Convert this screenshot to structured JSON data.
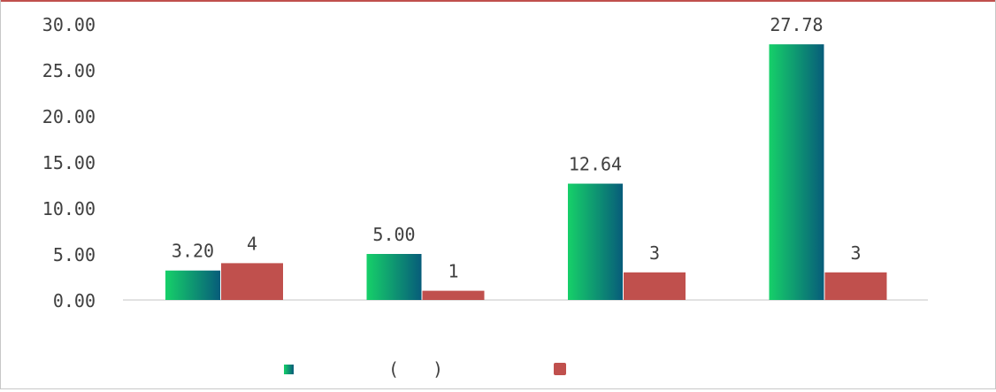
{
  "colors": {
    "series1_from": "#16d069",
    "series1_to": "#075c7a",
    "series2": "#c0504d",
    "border_top": "#c0504d",
    "axis": "#d9d9d9"
  },
  "legend": {
    "paren_open": "(",
    "paren_close": ")"
  },
  "chart_data": {
    "type": "bar",
    "categories": [
      "",
      "",
      "",
      ""
    ],
    "series": [
      {
        "values": [
          3.2,
          5.0,
          12.64,
          27.78
        ],
        "labels": [
          "3.20",
          "5.00",
          "12.64",
          "27.78"
        ]
      },
      {
        "values": [
          4,
          1,
          3,
          3
        ],
        "labels": [
          "4",
          "1",
          "3",
          "3"
        ]
      }
    ],
    "ylim": [
      0,
      30
    ],
    "yticks": [
      "0.00",
      "5.00",
      "10.00",
      "15.00",
      "20.00",
      "25.00",
      "30.00"
    ],
    "grid": false,
    "legend_position": "bottom"
  }
}
